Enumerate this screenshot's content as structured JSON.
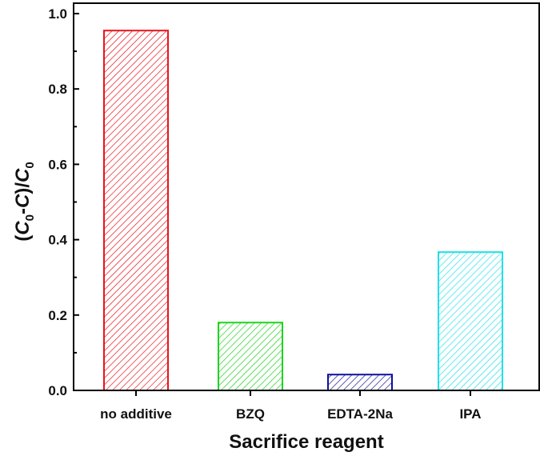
{
  "chart_data": {
    "type": "bar",
    "categories": [
      "no additive",
      "BZQ",
      "EDTA-2Na",
      "IPA"
    ],
    "values": [
      0.955,
      0.18,
      0.042,
      0.367
    ],
    "colors": [
      "#e8141c",
      "#1ed41e",
      "#10109a",
      "#22e0e8"
    ],
    "xlabel": "Sacrifice reagent",
    "ylabel": {
      "open": "(",
      "c1": "C",
      "sub1": "0",
      "mid": "-",
      "c2": "C",
      "close": ")/",
      "c3": "C",
      "sub3": "0"
    },
    "ylim": [
      0,
      1.0
    ],
    "yticks": [
      "0.0",
      "0.2",
      "0.4",
      "0.6",
      "0.8",
      "1.0"
    ],
    "fill_pattern": "diagonal-hatch",
    "grid": false,
    "legend": "none"
  }
}
